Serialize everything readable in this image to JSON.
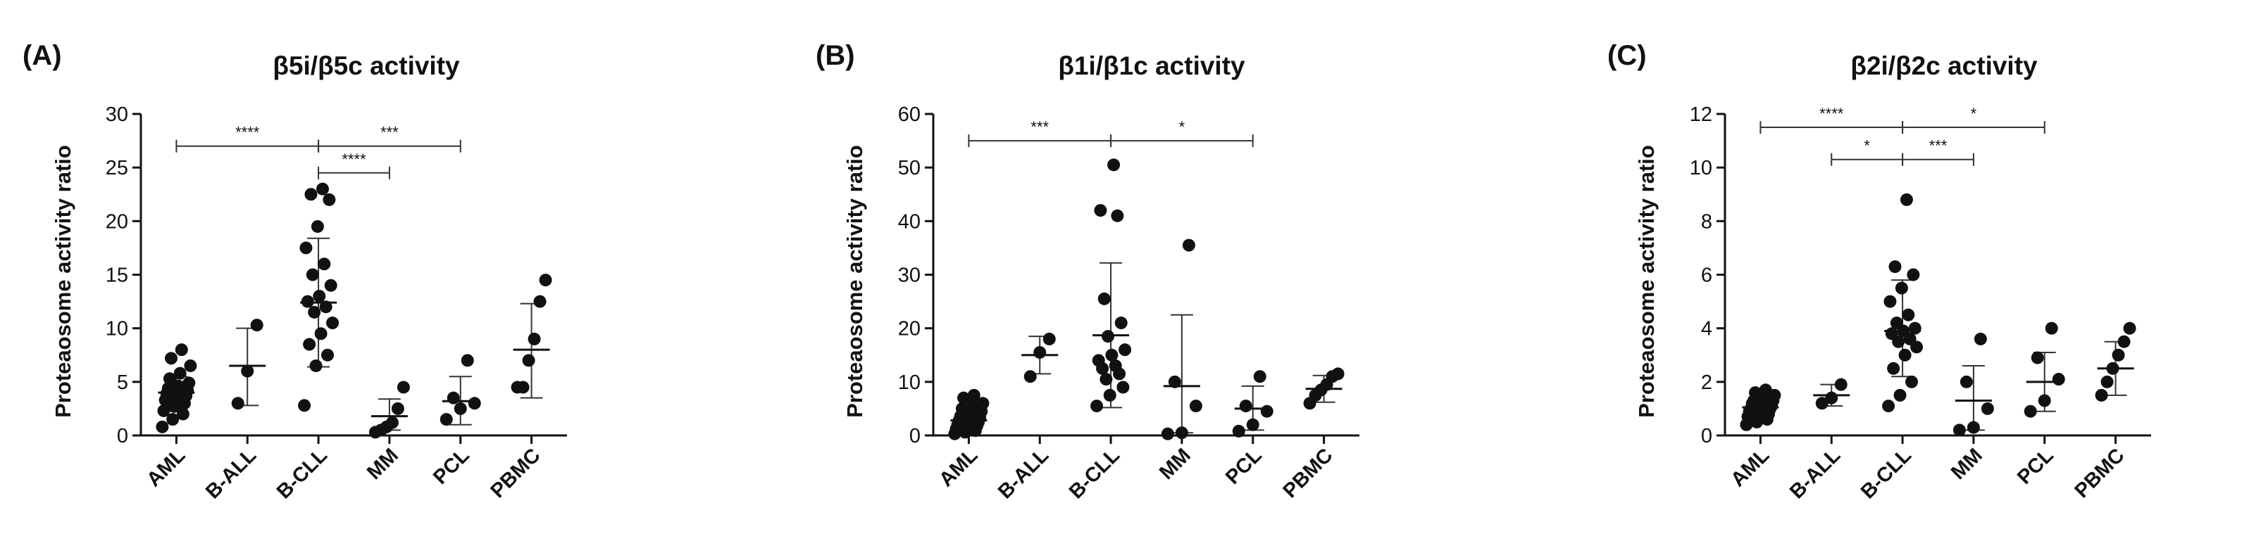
{
  "chart_data": [
    {
      "type": "scatter",
      "panel_label": "(A)",
      "title": "β5i/β5c activity",
      "ylabel": "Proteaosome activity ratio",
      "ylim": [
        0,
        30
      ],
      "yticks": [
        0,
        5,
        10,
        15,
        20,
        25,
        30
      ],
      "categories": [
        "AML",
        "B-ALL",
        "B-CLL",
        "MM",
        "PCL",
        "PBMC"
      ],
      "groups": [
        {
          "name": "AML",
          "mean": 4.0,
          "sd_low": 2.5,
          "sd_high": 5.5,
          "points": [
            0.8,
            1.5,
            2.0,
            2.3,
            2.7,
            3.0,
            3.3,
            3.5,
            3.7,
            3.9,
            4.0,
            4.2,
            4.4,
            4.6,
            4.9,
            5.3,
            5.8,
            6.5,
            7.2,
            8.0
          ]
        },
        {
          "name": "B-ALL",
          "mean": 6.5,
          "sd_low": 2.8,
          "sd_high": 10.0,
          "points": [
            3.0,
            6.0,
            10.3
          ]
        },
        {
          "name": "B-CLL",
          "mean": 12.4,
          "sd_low": 6.4,
          "sd_high": 18.4,
          "points": [
            2.8,
            6.5,
            7.5,
            8.5,
            9.5,
            10.5,
            11.5,
            12.0,
            12.5,
            13.0,
            14.0,
            15.0,
            16.0,
            17.5,
            19.5,
            22.0,
            22.5,
            23.0
          ]
        },
        {
          "name": "MM",
          "mean": 1.8,
          "sd_low": 0.5,
          "sd_high": 3.4,
          "points": [
            0.3,
            0.5,
            0.8,
            1.2,
            2.5,
            4.5
          ]
        },
        {
          "name": "PCL",
          "mean": 3.2,
          "sd_low": 1.0,
          "sd_high": 5.5,
          "points": [
            1.5,
            2.5,
            3.0,
            3.5,
            7.0
          ]
        },
        {
          "name": "PBMC",
          "mean": 8.0,
          "sd_low": 3.5,
          "sd_high": 12.3,
          "points": [
            4.5,
            4.5,
            7.0,
            9.0,
            12.5,
            14.5
          ]
        }
      ],
      "comparisons": [
        {
          "from": "AML",
          "to": "B-CLL",
          "y": 27.0,
          "label": "****"
        },
        {
          "from": "B-CLL",
          "to": "PCL",
          "y": 27.0,
          "label": "***"
        },
        {
          "from": "B-CLL",
          "to": "MM",
          "y": 24.5,
          "label": "****"
        }
      ]
    },
    {
      "type": "scatter",
      "panel_label": "(B)",
      "title": "β1i/β1c activity",
      "ylabel": "Proteaosome activity ratio",
      "ylim": [
        0,
        60
      ],
      "yticks": [
        0,
        10,
        20,
        30,
        40,
        50,
        60
      ],
      "categories": [
        "AML",
        "B-ALL",
        "B-CLL",
        "MM",
        "PCL",
        "PBMC"
      ],
      "groups": [
        {
          "name": "AML",
          "mean": 2.8,
          "sd_low": 1.0,
          "sd_high": 4.6,
          "points": [
            0.3,
            0.6,
            0.9,
            1.2,
            1.5,
            1.8,
            2.0,
            2.2,
            2.5,
            2.8,
            3.0,
            3.3,
            3.6,
            4.0,
            4.5,
            5.0,
            5.5,
            6.0,
            7.0,
            7.5
          ]
        },
        {
          "name": "B-ALL",
          "mean": 15.0,
          "sd_low": 11.5,
          "sd_high": 18.5,
          "points": [
            11.0,
            15.5,
            18.0
          ]
        },
        {
          "name": "B-CLL",
          "mean": 18.7,
          "sd_low": 5.2,
          "sd_high": 32.2,
          "points": [
            5.5,
            7.5,
            9.0,
            10.5,
            11.5,
            12.5,
            13.0,
            14.0,
            15.0,
            16.0,
            18.5,
            21.0,
            25.5,
            41.0,
            42.0,
            50.5
          ]
        },
        {
          "name": "MM",
          "mean": 9.2,
          "sd_low": 0.5,
          "sd_high": 22.5,
          "points": [
            0.3,
            0.5,
            5.5,
            10.0,
            35.5
          ]
        },
        {
          "name": "PCL",
          "mean": 5.0,
          "sd_low": 1.0,
          "sd_high": 9.2,
          "points": [
            0.8,
            2.0,
            4.5,
            5.5,
            11.0
          ]
        },
        {
          "name": "PBMC",
          "mean": 8.7,
          "sd_low": 6.2,
          "sd_high": 11.2,
          "points": [
            6.0,
            7.5,
            8.5,
            9.5,
            11.0,
            11.5
          ]
        }
      ],
      "comparisons": [
        {
          "from": "AML",
          "to": "B-CLL",
          "y": 55.0,
          "label": "***"
        },
        {
          "from": "B-CLL",
          "to": "PCL",
          "y": 55.0,
          "label": "*"
        }
      ]
    },
    {
      "type": "scatter",
      "panel_label": "(C)",
      "title": "β2i/β2c activity",
      "ylabel": "Proteaosome activity ratio",
      "ylim": [
        0,
        12
      ],
      "yticks": [
        0,
        2,
        4,
        6,
        8,
        10,
        12
      ],
      "categories": [
        "AML",
        "B-ALL",
        "B-CLL",
        "MM",
        "PCL",
        "PBMC"
      ],
      "groups": [
        {
          "name": "AML",
          "mean": 1.05,
          "sd_low": 0.7,
          "sd_high": 1.4,
          "points": [
            0.4,
            0.5,
            0.6,
            0.7,
            0.8,
            0.8,
            0.9,
            0.9,
            1.0,
            1.0,
            1.1,
            1.1,
            1.2,
            1.2,
            1.3,
            1.3,
            1.4,
            1.5,
            1.6,
            1.7
          ]
        },
        {
          "name": "B-ALL",
          "mean": 1.5,
          "sd_low": 1.1,
          "sd_high": 1.9,
          "points": [
            1.2,
            1.4,
            1.9
          ]
        },
        {
          "name": "B-CLL",
          "mean": 3.9,
          "sd_low": 2.2,
          "sd_high": 5.8,
          "points": [
            1.1,
            1.5,
            2.0,
            2.5,
            3.0,
            3.3,
            3.5,
            3.6,
            3.8,
            3.9,
            4.0,
            4.2,
            4.5,
            5.0,
            5.5,
            6.0,
            6.3,
            8.8
          ]
        },
        {
          "name": "MM",
          "mean": 1.3,
          "sd_low": 0.2,
          "sd_high": 2.6,
          "points": [
            0.2,
            0.3,
            1.0,
            2.0,
            3.6
          ]
        },
        {
          "name": "PCL",
          "mean": 2.0,
          "sd_low": 0.9,
          "sd_high": 3.1,
          "points": [
            0.9,
            1.3,
            2.1,
            2.9,
            4.0
          ]
        },
        {
          "name": "PBMC",
          "mean": 2.5,
          "sd_low": 1.5,
          "sd_high": 3.5,
          "points": [
            1.5,
            2.0,
            2.5,
            3.0,
            3.5,
            4.0
          ]
        }
      ],
      "comparisons": [
        {
          "from": "AML",
          "to": "B-CLL",
          "y": 11.5,
          "label": "****"
        },
        {
          "from": "B-CLL",
          "to": "PCL",
          "y": 11.5,
          "label": "*"
        },
        {
          "from": "B-ALL",
          "to": "B-CLL",
          "y": 10.3,
          "label": "*"
        },
        {
          "from": "B-CLL",
          "to": "MM",
          "y": 10.3,
          "label": "***"
        }
      ]
    }
  ]
}
